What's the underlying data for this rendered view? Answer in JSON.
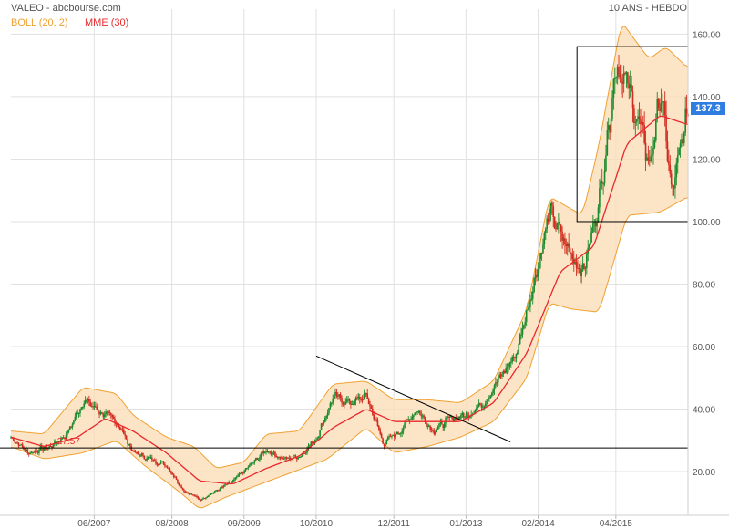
{
  "header": {
    "title": "VALEO - abcbourse.com",
    "period": "10 ANS - HEBDO"
  },
  "legend": {
    "boll": {
      "label": "BOLL (20, 2)",
      "color": "#f0a030"
    },
    "mme": {
      "label": "MME (30)",
      "color": "#e8282b"
    }
  },
  "last_price": {
    "label": "137.3",
    "color": "#2f7de1"
  },
  "chart_data": {
    "type": "candlestick",
    "y_range": [
      6,
      168
    ],
    "y_ticks": [
      20,
      40,
      60,
      80,
      100,
      120,
      140,
      160
    ],
    "y_tick_labels": [
      "20.00",
      "40.00",
      "60.00",
      "80.00",
      "100.00",
      "120.00",
      "140.00",
      "160.00"
    ],
    "x_tick_labels": [
      "06/2007",
      "08/2008",
      "09/2009",
      "10/2010",
      "12/2011",
      "01/2013",
      "02/2014",
      "04/2015"
    ],
    "x_tick_dates": [
      "2007-06",
      "2008-08",
      "2009-09",
      "2010-10",
      "2011-12",
      "2013-01",
      "2014-02",
      "2015-04"
    ],
    "x_start": "2006-03",
    "x_end": "2016-05",
    "grid": true,
    "price_path": [
      [
        "2006-03",
        31
      ],
      [
        "2006-06",
        26
      ],
      [
        "2006-10",
        28
      ],
      [
        "2007-01",
        32
      ],
      [
        "2007-04",
        43
      ],
      [
        "2007-07",
        39
      ],
      [
        "2007-10",
        36
      ],
      [
        "2008-01",
        26
      ],
      [
        "2008-04",
        24
      ],
      [
        "2008-07",
        22
      ],
      [
        "2008-10",
        14
      ],
      [
        "2009-01",
        11
      ],
      [
        "2009-04",
        14
      ],
      [
        "2009-07",
        17
      ],
      [
        "2009-10",
        22
      ],
      [
        "2010-01",
        27
      ],
      [
        "2010-04",
        24
      ],
      [
        "2010-07",
        25
      ],
      [
        "2010-10",
        31
      ],
      [
        "2011-01",
        44
      ],
      [
        "2011-04",
        42
      ],
      [
        "2011-07",
        44
      ],
      [
        "2011-10",
        29
      ],
      [
        "2012-01",
        33
      ],
      [
        "2012-04",
        40
      ],
      [
        "2012-07",
        33
      ],
      [
        "2012-10",
        37
      ],
      [
        "2013-01",
        38
      ],
      [
        "2013-04",
        42
      ],
      [
        "2013-07",
        50
      ],
      [
        "2013-10",
        58
      ],
      [
        "2014-01",
        80
      ],
      [
        "2014-04",
        103
      ],
      [
        "2014-07",
        92
      ],
      [
        "2014-10",
        84
      ],
      [
        "2015-01",
        108
      ],
      [
        "2015-04",
        152
      ],
      [
        "2015-07",
        138
      ],
      [
        "2015-10",
        118
      ],
      [
        "2015-12",
        142
      ],
      [
        "2016-02",
        108
      ],
      [
        "2016-05",
        137.3
      ]
    ],
    "mme_path": [
      [
        "2006-03",
        31
      ],
      [
        "2006-09",
        28
      ],
      [
        "2007-03",
        31
      ],
      [
        "2007-08",
        37
      ],
      [
        "2008-01",
        33
      ],
      [
        "2008-07",
        26
      ],
      [
        "2009-01",
        17
      ],
      [
        "2009-07",
        16
      ],
      [
        "2010-01",
        21
      ],
      [
        "2010-07",
        25
      ],
      [
        "2011-01",
        34
      ],
      [
        "2011-07",
        40
      ],
      [
        "2011-12",
        36
      ],
      [
        "2012-06",
        36
      ],
      [
        "2012-12",
        36
      ],
      [
        "2013-06",
        42
      ],
      [
        "2013-12",
        58
      ],
      [
        "2014-06",
        84
      ],
      [
        "2014-12",
        92
      ],
      [
        "2015-06",
        125
      ],
      [
        "2015-12",
        134
      ],
      [
        "2016-05",
        131
      ]
    ],
    "boll_upper_path": [
      [
        "2006-03",
        33
      ],
      [
        "2006-09",
        32
      ],
      [
        "2007-04",
        47
      ],
      [
        "2007-10",
        45
      ],
      [
        "2008-01",
        38
      ],
      [
        "2008-07",
        31
      ],
      [
        "2008-12",
        28
      ],
      [
        "2009-04",
        21
      ],
      [
        "2009-09",
        23
      ],
      [
        "2010-01",
        32
      ],
      [
        "2010-07",
        33
      ],
      [
        "2011-01",
        48
      ],
      [
        "2011-07",
        49
      ],
      [
        "2011-12",
        43
      ],
      [
        "2012-06",
        43
      ],
      [
        "2012-12",
        42
      ],
      [
        "2013-06",
        49
      ],
      [
        "2013-12",
        72
      ],
      [
        "2014-04",
        108
      ],
      [
        "2014-10",
        102
      ],
      [
        "2015-01",
        125
      ],
      [
        "2015-05",
        164
      ],
      [
        "2015-10",
        152
      ],
      [
        "2016-01",
        156
      ],
      [
        "2016-05",
        149
      ]
    ],
    "boll_lower_path": [
      [
        "2006-03",
        28
      ],
      [
        "2006-09",
        24
      ],
      [
        "2007-04",
        26
      ],
      [
        "2007-10",
        30
      ],
      [
        "2008-03",
        22
      ],
      [
        "2008-09",
        14
      ],
      [
        "2009-01",
        8
      ],
      [
        "2009-06",
        12
      ],
      [
        "2009-12",
        16
      ],
      [
        "2010-06",
        20
      ],
      [
        "2010-12",
        24
      ],
      [
        "2011-07",
        34
      ],
      [
        "2011-12",
        26
      ],
      [
        "2012-06",
        28
      ],
      [
        "2012-12",
        31
      ],
      [
        "2013-06",
        36
      ],
      [
        "2013-12",
        50
      ],
      [
        "2014-04",
        74
      ],
      [
        "2014-08",
        72
      ],
      [
        "2015-01",
        71
      ],
      [
        "2015-06",
        102
      ],
      [
        "2015-12",
        103
      ],
      [
        "2016-05",
        108
      ]
    ],
    "support_line": {
      "value": 27.57,
      "label": "27.57"
    },
    "trendline": {
      "start": [
        "2010-10",
        57
      ],
      "end": [
        "2013-09",
        29.5
      ]
    },
    "box": {
      "start": "2014-09",
      "end": "2016-05",
      "low": 100,
      "high": 156
    },
    "colors": {
      "up": "#1b8a2c",
      "down": "#d22a1e",
      "band_fill": "#fbdcb4",
      "band_line": "#f0a030",
      "mme": "#e8282b",
      "grid": "#e1e1e1",
      "axis_text": "#555555"
    }
  }
}
